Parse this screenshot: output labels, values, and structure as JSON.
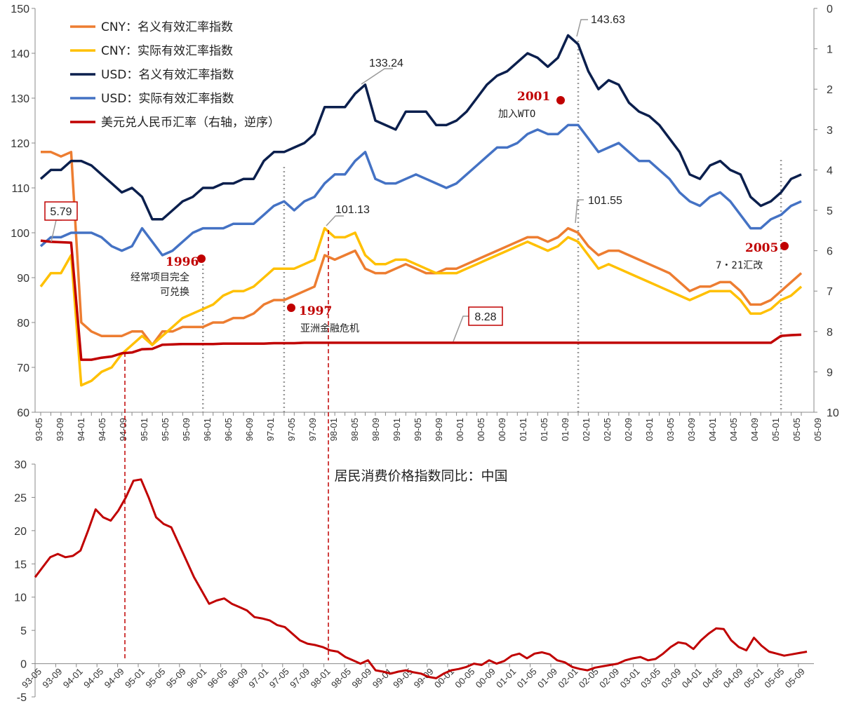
{
  "chart_data": [
    {
      "type": "line",
      "x": [
        "93-05",
        "93-07",
        "93-09",
        "93-11",
        "94-01",
        "94-03",
        "94-05",
        "94-07",
        "94-09",
        "94-11",
        "95-01",
        "95-03",
        "95-05",
        "95-07",
        "95-09",
        "95-11",
        "96-01",
        "96-03",
        "96-05",
        "96-07",
        "96-09",
        "96-11",
        "97-01",
        "97-03",
        "97-05",
        "97-07",
        "97-09",
        "97-11",
        "98-01",
        "98-03",
        "98-05",
        "98-07",
        "98-09",
        "98-11",
        "99-01",
        "99-03",
        "99-05",
        "99-07",
        "99-09",
        "99-11",
        "00-01",
        "00-03",
        "00-05",
        "00-07",
        "00-09",
        "00-11",
        "01-01",
        "01-03",
        "01-05",
        "01-07",
        "01-09",
        "01-11",
        "02-01",
        "02-03",
        "02-05",
        "02-07",
        "02-09",
        "02-11",
        "03-01",
        "03-03",
        "03-05",
        "03-07",
        "03-09",
        "03-11",
        "04-01",
        "04-03",
        "04-05",
        "04-07",
        "04-09",
        "04-11",
        "05-01",
        "05-03",
        "05-05",
        "05-07",
        "05-09",
        "05-11"
      ],
      "x_tick_labels": [
        "93-05",
        "93-09",
        "94-01",
        "94-05",
        "94-09",
        "95-01",
        "95-05",
        "95-09",
        "96-01",
        "96-05",
        "96-09",
        "97-01",
        "97-05",
        "97-09",
        "98-01",
        "98-05",
        "98-09",
        "99-01",
        "99-05",
        "99-09",
        "00-01",
        "00-05",
        "00-09",
        "01-01",
        "01-05",
        "01-09",
        "02-01",
        "02-05",
        "02-09",
        "03-01",
        "03-05",
        "03-09",
        "04-01",
        "04-05",
        "04-09",
        "05-01",
        "05-05",
        "05-09"
      ],
      "ylim": [
        60,
        150
      ],
      "y_ticks": [
        60,
        70,
        80,
        90,
        100,
        110,
        120,
        130,
        140,
        150
      ],
      "y2lim": [
        0,
        10
      ],
      "y2_inverted": true,
      "y2_ticks": [
        0,
        1,
        2,
        3,
        4,
        5,
        6,
        7,
        8,
        9,
        10
      ],
      "grid": false,
      "legend_position": "top-left",
      "series": [
        {
          "name": "CNY：名义有效汇率指数",
          "color": "#ed7d31",
          "axis": "left",
          "values": [
            118,
            118,
            117,
            118,
            80,
            78,
            77,
            77,
            77,
            78,
            78,
            75,
            78,
            78,
            79,
            79,
            79,
            80,
            80,
            81,
            81,
            82,
            84,
            85,
            85,
            86,
            87,
            88,
            95,
            94,
            95,
            96,
            92,
            91,
            91,
            92,
            93,
            92,
            91,
            91,
            92,
            92,
            93,
            94,
            95,
            96,
            97,
            98,
            99,
            99,
            98,
            99,
            101,
            100,
            97,
            95,
            96,
            96,
            95,
            94,
            93,
            92,
            91,
            89,
            87,
            88,
            88,
            89,
            89,
            87,
            84,
            84,
            85,
            87,
            89,
            91
          ]
        },
        {
          "name": "CNY：实际有效汇率指数",
          "color": "#ffc000",
          "axis": "left",
          "values": [
            88,
            91,
            91,
            95,
            66,
            67,
            69,
            70,
            73,
            75,
            77,
            75,
            77,
            79,
            81,
            82,
            83,
            84,
            86,
            87,
            87,
            88,
            90,
            92,
            92,
            92,
            93,
            94,
            101,
            99,
            99,
            100,
            95,
            93,
            93,
            94,
            94,
            93,
            92,
            91,
            91,
            91,
            92,
            93,
            94,
            95,
            96,
            97,
            98,
            97,
            96,
            97,
            99,
            98,
            95,
            92,
            93,
            92,
            91,
            90,
            89,
            88,
            87,
            86,
            85,
            86,
            87,
            87,
            87,
            85,
            82,
            82,
            83,
            85,
            86,
            88
          ]
        },
        {
          "name": "USD：名义有效汇率指数",
          "color": "#0b1f4d",
          "axis": "left",
          "values": [
            112,
            114,
            114,
            116,
            116,
            115,
            113,
            111,
            109,
            110,
            108,
            103,
            103,
            105,
            107,
            108,
            110,
            110,
            111,
            111,
            112,
            112,
            116,
            118,
            118,
            119,
            120,
            122,
            128,
            128,
            128,
            131,
            133,
            125,
            124,
            123,
            127,
            127,
            127,
            124,
            124,
            125,
            127,
            130,
            133,
            135,
            136,
            138,
            140,
            139,
            137,
            139,
            144,
            142,
            136,
            132,
            134,
            133,
            129,
            127,
            126,
            124,
            121,
            118,
            113,
            112,
            115,
            116,
            114,
            113,
            108,
            106,
            107,
            109,
            112,
            113
          ]
        },
        {
          "name": "USD：实际有效汇率指数",
          "color": "#4472c4",
          "axis": "left",
          "values": [
            97,
            99,
            99,
            100,
            100,
            100,
            99,
            97,
            96,
            97,
            101,
            98,
            95,
            96,
            98,
            100,
            101,
            101,
            101,
            102,
            102,
            102,
            104,
            106,
            107,
            105,
            107,
            108,
            111,
            113,
            113,
            116,
            118,
            112,
            111,
            111,
            112,
            113,
            112,
            111,
            110,
            111,
            113,
            115,
            117,
            119,
            119,
            120,
            122,
            123,
            122,
            122,
            124,
            124,
            121,
            118,
            119,
            120,
            118,
            116,
            116,
            114,
            112,
            109,
            107,
            106,
            108,
            109,
            107,
            104,
            101,
            101,
            103,
            104,
            106,
            107
          ]
        },
        {
          "name": "美元兑人民币汇率（右轴，逆序）",
          "color": "#c00000",
          "axis": "right",
          "values": [
            5.75,
            5.78,
            5.79,
            5.8,
            8.7,
            8.7,
            8.65,
            8.62,
            8.54,
            8.52,
            8.44,
            8.43,
            8.33,
            8.32,
            8.31,
            8.31,
            8.31,
            8.31,
            8.3,
            8.3,
            8.3,
            8.3,
            8.3,
            8.29,
            8.29,
            8.29,
            8.28,
            8.28,
            8.28,
            8.28,
            8.28,
            8.28,
            8.28,
            8.28,
            8.28,
            8.28,
            8.28,
            8.28,
            8.28,
            8.28,
            8.28,
            8.28,
            8.28,
            8.28,
            8.28,
            8.28,
            8.28,
            8.28,
            8.28,
            8.28,
            8.28,
            8.28,
            8.28,
            8.28,
            8.28,
            8.28,
            8.28,
            8.28,
            8.28,
            8.28,
            8.28,
            8.28,
            8.28,
            8.28,
            8.28,
            8.28,
            8.28,
            8.28,
            8.28,
            8.28,
            8.28,
            8.28,
            8.28,
            8.11,
            8.09,
            8.08
          ]
        }
      ],
      "callouts": [
        "143.63",
        "133.24",
        "101.13",
        "101.55",
        "5.79",
        "8.28"
      ],
      "events": [
        {
          "year": "1996",
          "note": [
            "经常项目完全",
            "可兑换"
          ]
        },
        {
          "year": "1997",
          "note": [
            "亚洲金融危机"
          ]
        },
        {
          "year": "2001",
          "note": [
            "加入WTO"
          ]
        },
        {
          "year": "2005",
          "note": [
            "7・21汇改"
          ]
        }
      ]
    },
    {
      "type": "line",
      "title": "居民消费价格指数同比：中国",
      "x_tick_labels": [
        "93-05",
        "93-09",
        "94-01",
        "94-05",
        "94-09",
        "95-01",
        "95-05",
        "95-09",
        "96-01",
        "96-05",
        "96-09",
        "97-01",
        "97-05",
        "97-09",
        "98-01",
        "98-05",
        "98-09",
        "99-01",
        "99-05",
        "99-09",
        "00-01",
        "00-05",
        "00-09",
        "01-01",
        "01-05",
        "01-09",
        "02-01",
        "02-05",
        "02-09",
        "03-01",
        "03-05",
        "03-09",
        "04-01",
        "04-05",
        "04-09",
        "05-01",
        "05-05",
        "05-09"
      ],
      "ylim": [
        -5,
        30
      ],
      "y_ticks": [
        -5,
        0,
        5,
        10,
        15,
        20,
        25,
        30
      ],
      "grid": false,
      "series": [
        {
          "color": "#c00000",
          "values": [
            13.0,
            14.5,
            16.0,
            16.5,
            16.0,
            16.2,
            17.0,
            20.0,
            23.2,
            22.0,
            21.5,
            23.0,
            25.0,
            27.5,
            27.7,
            25.0,
            22.0,
            21.0,
            20.5,
            18.0,
            15.5,
            13.0,
            11.0,
            9.0,
            9.5,
            9.8,
            9.0,
            8.5,
            8.0,
            7.0,
            6.8,
            6.5,
            5.8,
            5.5,
            4.5,
            3.5,
            3.0,
            2.8,
            2.5,
            2.0,
            1.8,
            1.0,
            0.5,
            0.0,
            0.5,
            -1.0,
            -1.2,
            -1.5,
            -1.2,
            -1.0,
            -1.3,
            -1.5,
            -2.0,
            -2.2,
            -1.5,
            -1.0,
            -0.8,
            -0.5,
            0.0,
            -0.2,
            0.5,
            0.0,
            0.4,
            1.2,
            1.5,
            0.8,
            1.5,
            1.7,
            1.4,
            0.5,
            0.2,
            -0.5,
            -0.8,
            -1.0,
            -0.6,
            -0.4,
            -0.2,
            0.0,
            0.5,
            0.8,
            1.0,
            0.5,
            0.7,
            1.5,
            2.5,
            3.2,
            3.0,
            2.2,
            3.5,
            4.5,
            5.3,
            5.2,
            3.5,
            2.5,
            2.0,
            3.9,
            2.7,
            1.8,
            1.5,
            1.2,
            1.4,
            1.6,
            1.8
          ]
        }
      ]
    }
  ]
}
